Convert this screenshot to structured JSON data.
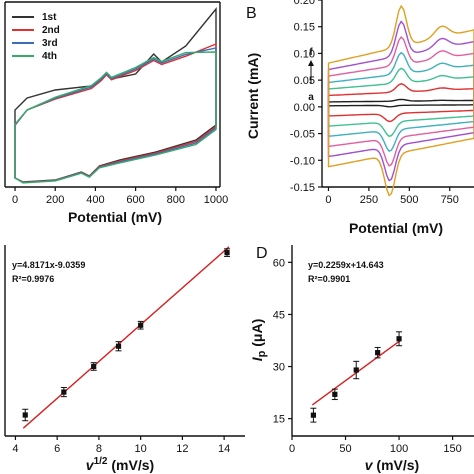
{
  "colors": {
    "cycle1": "#333333",
    "cycle2": "#e03030",
    "cycle3": "#3a6fb8",
    "cycle4": "#3aaa6a",
    "fit_line": "#d81f1f",
    "marker": "#111111",
    "ratescan": [
      "#e0a020",
      "#a050d0",
      "#e060a0",
      "#40b0c0",
      "#40c090",
      "#e03030",
      "#202020",
      "#202020",
      "#e03030",
      "#40c090",
      "#40b0c0",
      "#e060a0",
      "#a050d0",
      "#e0a020"
    ]
  },
  "chart_data": [
    {
      "panel": "A",
      "type": "line",
      "panel_label": "",
      "xlabel": "Potential (mV)",
      "ylabel": "",
      "xlim": [
        -50,
        1020
      ],
      "xticks": [
        "0",
        "200",
        "400",
        "600",
        "800",
        "1000"
      ],
      "legend": {
        "placement": "top-left",
        "entries": [
          "1st",
          "2nd",
          "3rd",
          "4th"
        ]
      },
      "series": [
        {
          "name": "1st",
          "anodic_peaks_mV": [
            450,
            690
          ],
          "cathodic_peak_mV": 370
        },
        {
          "name": "2nd",
          "anodic_peaks_mV": [
            450,
            690
          ],
          "cathodic_peak_mV": 370
        },
        {
          "name": "3rd",
          "anodic_peaks_mV": [
            450,
            690
          ],
          "cathodic_peak_mV": 370
        },
        {
          "name": "4th",
          "anodic_peaks_mV": [
            450,
            690
          ],
          "cathodic_peak_mV": 370
        }
      ]
    },
    {
      "panel": "B",
      "type": "line",
      "panel_label": "B",
      "xlabel": "Potential (mV)",
      "ylabel": "Current (mA)",
      "xlim": [
        -40,
        900
      ],
      "ylim": [
        -0.15,
        0.2
      ],
      "xticks": [
        "0",
        "250",
        "500",
        "750"
      ],
      "yticks": [
        "0.20",
        "0.15",
        "0.10",
        "0.05",
        "0.00",
        "-0.05",
        "-0.10",
        "-0.15"
      ],
      "arrow_labels": {
        "top": "f",
        "bottom": "a"
      },
      "curve_count": 7
    },
    {
      "panel": "C",
      "type": "scatter",
      "panel_label": "",
      "xlabel": "v1/2 (mV/s)",
      "xlabel_parts": {
        "var": "v",
        "sup": "1/2",
        "unit": " (mV/s)"
      },
      "ylabel": "",
      "xlim": [
        3.5,
        15
      ],
      "ylim": [
        10,
        60
      ],
      "xticks": [
        "4",
        "6",
        "8",
        "10",
        "12",
        "14"
      ],
      "annotation": {
        "equation": "y=4.8171x-9.0359",
        "r2": "R²=0.9976"
      },
      "x": [
        4.47,
        6.32,
        7.75,
        8.94,
        10.0,
        14.14
      ],
      "y": [
        15.5,
        21.5,
        28.2,
        33.5,
        39.0,
        58.0
      ],
      "error": [
        1.5,
        1.2,
        1.0,
        1.2,
        1.0,
        1.0
      ],
      "fit": {
        "slope": 4.8171,
        "intercept": -9.0359
      }
    },
    {
      "panel": "D",
      "type": "scatter",
      "panel_label": "D",
      "xlabel": "v (mV/s)",
      "xlabel_parts": {
        "var": "v",
        "unit": " (mV/s)"
      },
      "ylabel": "Ip (μA)",
      "ylabel_parts": {
        "var": "I",
        "sub": "p",
        "unit": " (μA)"
      },
      "xlim": [
        0,
        170
      ],
      "ylim": [
        10,
        65
      ],
      "xticks": [
        "0",
        "50",
        "100",
        "150"
      ],
      "yticks": [
        "15",
        "30",
        "45",
        "60"
      ],
      "annotation": {
        "equation": "y=0.2259x+14.643",
        "r2": "R²=0.9901"
      },
      "x": [
        20,
        40,
        60,
        80,
        100
      ],
      "y": [
        16.0,
        22.0,
        29.0,
        34.0,
        38.0
      ],
      "error": [
        2.0,
        1.5,
        2.5,
        1.5,
        2.0
      ],
      "fit": {
        "slope": 0.2259,
        "intercept": 14.643
      }
    }
  ]
}
